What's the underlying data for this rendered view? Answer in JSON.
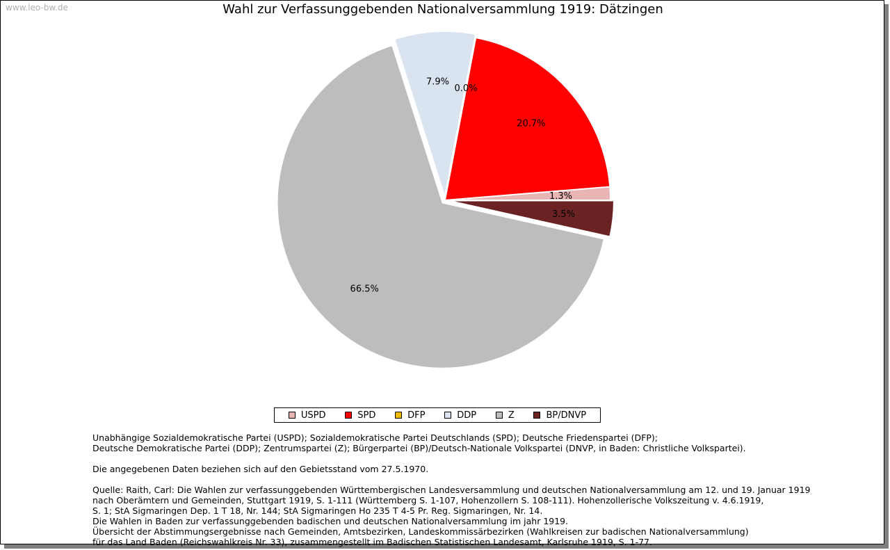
{
  "watermark": "www.leo-bw.de",
  "chart_data": {
    "type": "pie",
    "title": "Wahl zur Verfassunggebenden Nationalversammlung 1919: Dätzingen",
    "slices": [
      {
        "name": "USPD",
        "value": 1.3,
        "label": "1.3%",
        "color": "#e8b4b4"
      },
      {
        "name": "SPD",
        "value": 20.7,
        "label": "20.7%",
        "color": "#ff0000"
      },
      {
        "name": "DFP",
        "value": 0.0,
        "label": "0.0%",
        "color": "#f5b800"
      },
      {
        "name": "DDP",
        "value": 7.9,
        "label": "7.9%",
        "color": "#dae3f0"
      },
      {
        "name": "Z",
        "value": 66.5,
        "label": "66.5%",
        "color": "#bdbdbd"
      },
      {
        "name": "BP/DNVP",
        "value": 3.5,
        "label": "3.5%",
        "color": "#6b2222"
      }
    ],
    "exploded": [
      "DDP",
      "Z",
      "BP/DNVP"
    ],
    "legend_position": "bottom"
  },
  "notes": {
    "parties_line1": "Unabhängige Sozialdemokratische Partei (USPD); Sozialdemokratische Partei Deutschlands (SPD); Deutsche Friedenspartei (DFP);",
    "parties_line2": "Deutsche Demokratische Partei (DDP); Zentrumspartei (Z); Bürgerpartei (BP)/Deutsch-Nationale Volkspartei (DNVP, in Baden: Christliche Volkspartei).",
    "territory": "Die angegebenen Daten beziehen sich auf den Gebietsstand vom 27.5.1970.",
    "source_lines": [
      "Quelle: Raith, Carl: Die Wahlen zur verfassunggebenden Württembergischen Landesversammlung und deutschen Nationalversammlung am 12. und 19. Januar 1919",
      "nach Oberämtern und Gemeinden, Stuttgart 1919, S. 1-111 (Württemberg S. 1-107, Hohenzollern S. 108-111). Hohenzollerische Volkszeitung v. 4.6.1919,",
      "S. 1; StA Sigmaringen Dep. 1 T 18, Nr. 144; StA Sigmaringen Ho 235 T 4-5 Pr. Reg. Sigmaringen, Nr. 14.",
      "Die Wahlen in Baden zur verfassunggebenden badischen und deutschen Nationalversammlung im jahr 1919.",
      "Übersicht der Abstimmungsergebnisse nach Gemeinden, Amtsbezirken, Landeskommissärbezirken (Wahlkreisen zur badischen Nationalversammlung)",
      "für das Land Baden (Reichswahlkreis Nr. 33), zusammengestellt im Badischen Statistischen Landesamt, Karlsruhe 1919, S. 1-77."
    ]
  }
}
